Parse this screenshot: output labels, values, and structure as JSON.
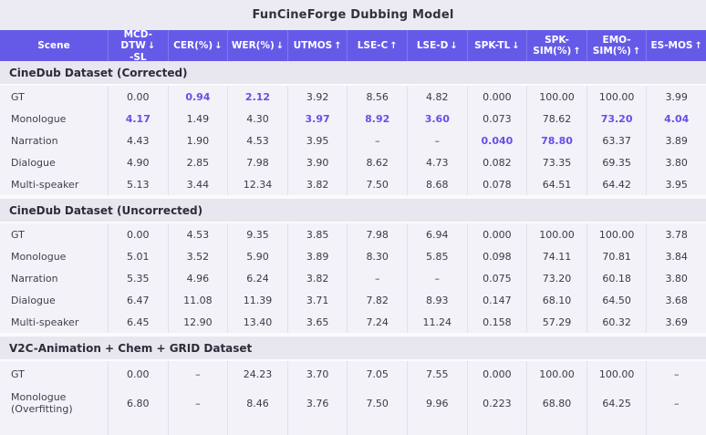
{
  "title": "FunCineForge Dubbing Model",
  "colors": {
    "header_bg": "#655AE8",
    "header_text": "#FFFFFF",
    "highlight": "#6650E6",
    "section_bg": "#E8E7F0",
    "row_bg": "#F3F2F9",
    "page_bg": "#ECEBF4",
    "text": "#3B3A45"
  },
  "table": {
    "scene_header": "Scene",
    "columns": [
      {
        "label": "MCD-DTW",
        "label2": "-SL",
        "arrow": "↓",
        "slug": "mcd-dtw-sl"
      },
      {
        "label": "CER(%)",
        "label2": "",
        "arrow": "↓",
        "slug": "cer"
      },
      {
        "label": "WER(%)",
        "label2": "",
        "arrow": "↓",
        "slug": "wer"
      },
      {
        "label": "UTMOS",
        "label2": "",
        "arrow": "↑",
        "slug": "utmos"
      },
      {
        "label": "LSE-C",
        "label2": "",
        "arrow": "↑",
        "slug": "lse-c"
      },
      {
        "label": "LSE-D",
        "label2": "",
        "arrow": "↓",
        "slug": "lse-d"
      },
      {
        "label": "SPK-TL",
        "label2": "",
        "arrow": "↓",
        "slug": "spk-tl"
      },
      {
        "label": "SPK-SIM(%)",
        "label2": "",
        "arrow": "↑",
        "slug": "spk-sim"
      },
      {
        "label": "EMO-SIM(%)",
        "label2": "",
        "arrow": "↑",
        "slug": "emo-sim"
      },
      {
        "label": "ES-MOS",
        "label2": "",
        "arrow": "↑",
        "slug": "es-mos"
      }
    ],
    "sections": [
      {
        "title": "CineDub Dataset (Corrected)",
        "rows": [
          {
            "label": "GT",
            "values": [
              "0.00",
              "0.94",
              "2.12",
              "3.92",
              "8.56",
              "4.82",
              "0.000",
              "100.00",
              "100.00",
              "3.99"
            ],
            "hl": [
              1,
              2
            ]
          },
          {
            "label": "Monologue",
            "values": [
              "4.17",
              "1.49",
              "4.30",
              "3.97",
              "8.92",
              "3.60",
              "0.073",
              "78.62",
              "73.20",
              "4.04"
            ],
            "hl": [
              0,
              3,
              4,
              5,
              8,
              9
            ]
          },
          {
            "label": "Narration",
            "values": [
              "4.43",
              "1.90",
              "4.53",
              "3.95",
              "–",
              "–",
              "0.040",
              "78.80",
              "63.37",
              "3.89"
            ],
            "hl": [
              6,
              7
            ]
          },
          {
            "label": "Dialogue",
            "values": [
              "4.90",
              "2.85",
              "7.98",
              "3.90",
              "8.62",
              "4.73",
              "0.082",
              "73.35",
              "69.35",
              "3.80"
            ],
            "hl": []
          },
          {
            "label": "Multi-speaker",
            "values": [
              "5.13",
              "3.44",
              "12.34",
              "3.82",
              "7.50",
              "8.68",
              "0.078",
              "64.51",
              "64.42",
              "3.95"
            ],
            "hl": []
          }
        ]
      },
      {
        "title": "CineDub Dataset (Uncorrected)",
        "rows": [
          {
            "label": "GT",
            "values": [
              "0.00",
              "4.53",
              "9.35",
              "3.85",
              "7.98",
              "6.94",
              "0.000",
              "100.00",
              "100.00",
              "3.78"
            ],
            "hl": []
          },
          {
            "label": "Monologue",
            "values": [
              "5.01",
              "3.52",
              "5.90",
              "3.89",
              "8.30",
              "5.85",
              "0.098",
              "74.11",
              "70.81",
              "3.84"
            ],
            "hl": []
          },
          {
            "label": "Narration",
            "values": [
              "5.35",
              "4.96",
              "6.24",
              "3.82",
              "–",
              "–",
              "0.075",
              "73.20",
              "60.18",
              "3.80"
            ],
            "hl": []
          },
          {
            "label": "Dialogue",
            "values": [
              "6.47",
              "11.08",
              "11.39",
              "3.71",
              "7.82",
              "8.93",
              "0.147",
              "68.10",
              "64.50",
              "3.68"
            ],
            "hl": []
          },
          {
            "label": "Multi-speaker",
            "values": [
              "6.45",
              "12.90",
              "13.40",
              "3.65",
              "7.24",
              "11.24",
              "0.158",
              "57.29",
              "60.32",
              "3.69"
            ],
            "hl": []
          }
        ]
      },
      {
        "title": "V2C-Animation + Chem + GRID Dataset",
        "rows": [
          {
            "label": "GT",
            "values": [
              "0.00",
              "–",
              "24.23",
              "3.70",
              "7.05",
              "7.55",
              "0.000",
              "100.00",
              "100.00",
              "–"
            ],
            "hl": [],
            "tall": true
          },
          {
            "label": "Monologue (Overfitting)",
            "values": [
              "6.80",
              "–",
              "8.46",
              "3.76",
              "7.50",
              "9.96",
              "0.223",
              "68.80",
              "64.25",
              "–"
            ],
            "hl": [],
            "tall": true
          }
        ]
      }
    ]
  }
}
